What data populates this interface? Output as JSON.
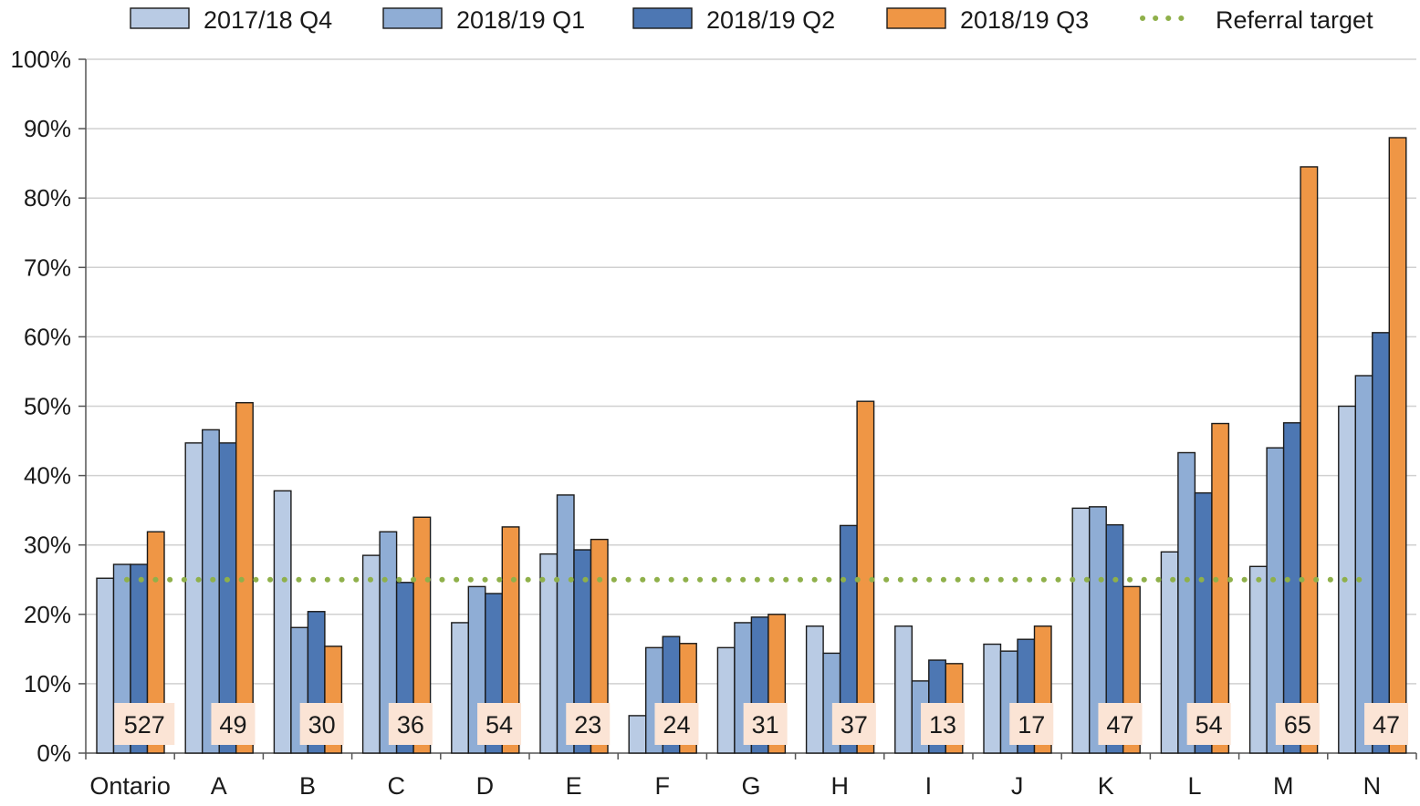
{
  "chart_data": {
    "type": "bar",
    "title": "",
    "xlabel": "",
    "ylabel": "",
    "ylim": [
      0,
      100
    ],
    "y_ticks": [
      "0%",
      "10%",
      "20%",
      "30%",
      "40%",
      "50%",
      "60%",
      "70%",
      "80%",
      "90%",
      "100%"
    ],
    "grid": true,
    "legend_position": "top",
    "categories": [
      "Ontario",
      "A",
      "B",
      "C",
      "D",
      "E",
      "F",
      "G",
      "H",
      "I",
      "J",
      "K",
      "L",
      "M",
      "N"
    ],
    "series": [
      {
        "name": "2017/18 Q4",
        "color": "#b9cbe4",
        "values": [
          25.2,
          44.7,
          37.8,
          28.5,
          18.8,
          28.7,
          5.4,
          15.2,
          18.3,
          18.3,
          15.7,
          35.3,
          29.0,
          26.9,
          50.0
        ]
      },
      {
        "name": "2018/19 Q1",
        "color": "#8fadd5",
        "values": [
          27.2,
          46.6,
          18.1,
          31.9,
          24.0,
          37.2,
          15.2,
          18.8,
          14.4,
          10.4,
          14.7,
          35.5,
          43.3,
          44.0,
          54.4
        ]
      },
      {
        "name": "2018/19 Q2",
        "color": "#4d77b3",
        "values": [
          27.2,
          44.7,
          20.4,
          24.6,
          23.0,
          29.3,
          16.8,
          19.6,
          32.8,
          13.4,
          16.4,
          32.9,
          37.5,
          47.6,
          60.6
        ]
      },
      {
        "name": "2018/19 Q3",
        "color": "#ef9645",
        "values": [
          31.9,
          50.5,
          15.4,
          34.0,
          32.6,
          30.8,
          15.8,
          20.0,
          50.7,
          12.9,
          18.3,
          24.0,
          47.5,
          84.5,
          88.7
        ]
      }
    ],
    "reference_line": {
      "name": "Referral target",
      "value": 25,
      "color": "#8fb04a",
      "style": "dotted"
    },
    "count_labels": [
      "527",
      "49",
      "30",
      "36",
      "54",
      "23",
      "24",
      "31",
      "37",
      "13",
      "17",
      "47",
      "54",
      "65",
      "47"
    ],
    "count_label_color": "#fbe4d5"
  }
}
